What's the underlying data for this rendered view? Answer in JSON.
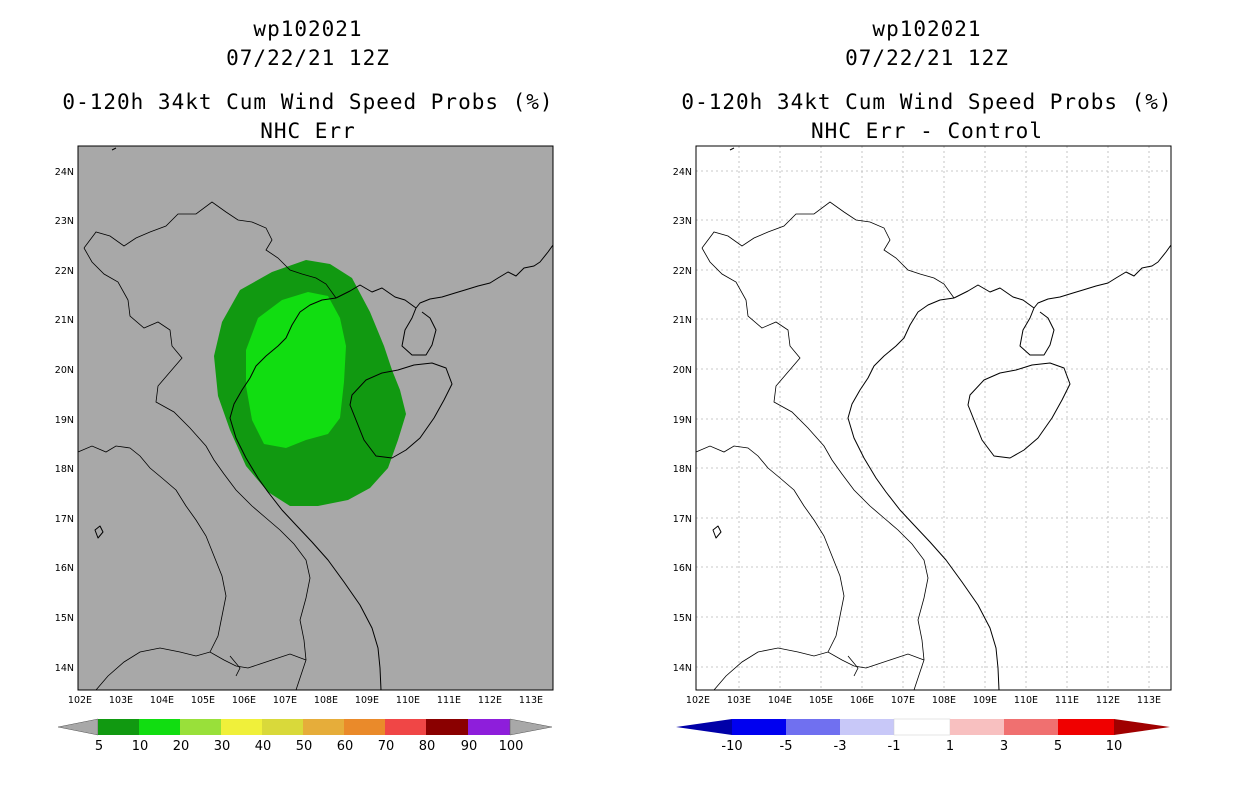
{
  "left_panel": {
    "storm_id": "wp102021",
    "datetime": "07/22/21 12Z",
    "product": "0-120h 34kt Cum Wind Speed Probs (%)",
    "subtitle": "NHC Err",
    "colorbar": {
      "labels": [
        "5",
        "10",
        "20",
        "30",
        "40",
        "50",
        "60",
        "70",
        "80",
        "90",
        "100"
      ],
      "colors": [
        "#119911",
        "#11dd11",
        "#99e03a",
        "#f0f03a",
        "#d9d93a",
        "#e6ad3a",
        "#ea8a2a",
        "#f04646",
        "#a30000",
        "#8a0000",
        "#8e1edb"
      ]
    }
  },
  "right_panel": {
    "storm_id": "wp102021",
    "datetime": "07/22/21 12Z",
    "product": "0-120h 34kt Cum Wind Speed Probs (%)",
    "subtitle": "NHC Err - Control",
    "colorbar": {
      "labels": [
        "-10",
        "-5",
        "-3",
        "-1",
        "1",
        "3",
        "5",
        "10"
      ],
      "colors": [
        "#0000a8",
        "#0000f0",
        "#7070f0",
        "#c8c8f8",
        "#ffffff",
        "#f8c0c0",
        "#f07070",
        "#f00000",
        "#a00000"
      ]
    }
  },
  "map": {
    "lon_labels": [
      "102E",
      "103E",
      "104E",
      "105E",
      "106E",
      "107E",
      "108E",
      "109E",
      "110E",
      "111E",
      "112E",
      "113E"
    ],
    "lat_labels": [
      "24N",
      "23N",
      "22N",
      "21N",
      "20N",
      "19N",
      "18N",
      "17N",
      "16N",
      "15N",
      "14N"
    ],
    "colors": {
      "land_bg": "#a8a8a8",
      "prob_5": "#119911",
      "prob_10": "#11dd11"
    }
  }
}
